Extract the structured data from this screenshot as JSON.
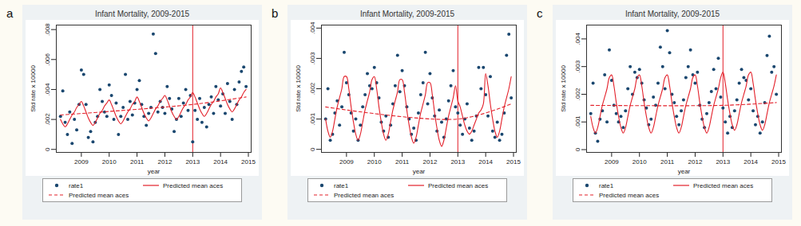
{
  "chart_data": [
    {
      "type": "scatter",
      "panel_label": "a",
      "title": "Infant Mortality, 2009-2015",
      "x_label": "year",
      "y_label": "Std rate x 10000",
      "xlim": [
        2008.1,
        2015.1
      ],
      "xticks": [
        2009,
        2010,
        2011,
        2012,
        2013,
        2014,
        2015
      ],
      "ylim": [
        -0.0002,
        0.0083
      ],
      "yticks": [
        0,
        {
          "value": 0.002,
          "label": ".002"
        },
        {
          "value": 0.004,
          "label": ".004"
        },
        {
          "value": 0.006,
          "label": ".006"
        },
        {
          "value": 0.008,
          "label": ".008"
        }
      ],
      "reference_line": {
        "x": 2013,
        "color": "#e3202a"
      },
      "legend": "bottom",
      "x": [
        2008.25,
        2008.333,
        2008.417,
        2008.5,
        2008.583,
        2008.667,
        2008.75,
        2008.833,
        2008.917,
        2009,
        2009.083,
        2009.167,
        2009.25,
        2009.333,
        2009.417,
        2009.5,
        2009.583,
        2009.667,
        2009.75,
        2009.833,
        2009.917,
        2010,
        2010.083,
        2010.167,
        2010.25,
        2010.333,
        2010.417,
        2010.5,
        2010.583,
        2010.667,
        2010.75,
        2010.833,
        2010.917,
        2011,
        2011.083,
        2011.167,
        2011.25,
        2011.333,
        2011.417,
        2011.5,
        2011.583,
        2011.667,
        2011.75,
        2011.833,
        2011.917,
        2012,
        2012.083,
        2012.167,
        2012.25,
        2012.333,
        2012.417,
        2012.5,
        2012.583,
        2012.667,
        2012.75,
        2012.833,
        2012.917,
        2013,
        2013.083,
        2013.167,
        2013.25,
        2013.333,
        2013.417,
        2013.5,
        2013.583,
        2013.667,
        2013.75,
        2013.833,
        2013.917,
        2014,
        2014.083,
        2014.167,
        2014.25,
        2014.333,
        2014.417,
        2014.5,
        2014.583,
        2014.667,
        2014.75,
        2014.833,
        2014.917
      ],
      "series": [
        {
          "name": "rate1",
          "type": "scatter",
          "marker": "circle",
          "color": "#1a476f",
          "values": [
            0.0022,
            0.0039,
            0.0018,
            0.001,
            0.0025,
            0.0004,
            0.002,
            0.0013,
            0.003,
            0.0053,
            0.005,
            0.003,
            0.0008,
            0.0012,
            0.0005,
            0.0018,
            0.0022,
            0.004,
            0.0032,
            0.0025,
            0.0022,
            0.0043,
            0.0036,
            0.002,
            0.0031,
            0.001,
            0.0022,
            0.0028,
            0.005,
            0.002,
            0.0032,
            0.0023,
            0.0031,
            0.004,
            0.0046,
            0.003,
            0.0022,
            0.0016,
            0.0024,
            0.0028,
            0.0077,
            0.0064,
            0.0025,
            0.0032,
            0.0028,
            0.0024,
            0.0042,
            0.0034,
            0.0027,
            0.0012,
            0.002,
            0.0034,
            0.0022,
            0.0031,
            0.004,
            0.0026,
            0.0036,
            0.0005,
            0.0026,
            0.002,
            0.0034,
            0.0018,
            0.0028,
            0.0015,
            0.003,
            0.0035,
            0.0024,
            0.0042,
            0.0033,
            0.0029,
            0.0037,
            0.0024,
            0.0044,
            0.0032,
            0.002,
            0.004,
            0.003,
            0.0045,
            0.0052,
            0.0055,
            0.0042
          ]
        },
        {
          "name": "Predicted mean aces",
          "type": "line",
          "line_style": "solid",
          "color": "#e3202a",
          "values": [
            0.002,
            0.0017,
            0.0015,
            0.0017,
            0.002,
            0.0023,
            0.0025,
            0.0028,
            0.003,
            0.0032,
            0.0029,
            0.0025,
            0.0021,
            0.0018,
            0.0016,
            0.0018,
            0.0021,
            0.0024,
            0.0026,
            0.0029,
            0.0031,
            0.0033,
            0.003,
            0.0026,
            0.0022,
            0.0019,
            0.0017,
            0.0019,
            0.0022,
            0.0025,
            0.0027,
            0.003,
            0.0032,
            0.0035,
            0.0032,
            0.0028,
            0.0024,
            0.0021,
            0.0019,
            0.0021,
            0.0024,
            0.0027,
            0.0029,
            0.0032,
            0.0034,
            0.0036,
            0.0033,
            0.0029,
            0.0025,
            0.0022,
            0.002,
            0.0022,
            0.0025,
            0.0028,
            0.003,
            0.0033,
            0.0035,
            0.0038,
            0.0035,
            0.0031,
            0.0027,
            0.0024,
            0.0022,
            0.0024,
            0.0027,
            0.003,
            0.0032,
            0.0035,
            0.0037,
            0.0041,
            0.0038,
            0.0034,
            0.003,
            0.0027,
            0.0025,
            0.0027,
            0.003,
            0.0033,
            0.0035,
            0.0038,
            0.004
          ]
        },
        {
          "name": "Predicted mean aces",
          "type": "line",
          "line_style": "dashed",
          "color": "#e3202a",
          "x": [
            2008.25,
            2013,
            2014.917
          ],
          "values": [
            0.0023,
            0.003,
            0.0035
          ]
        }
      ]
    },
    {
      "type": "scatter",
      "panel_label": "b",
      "title": "Infant Mortality, 2009-2015",
      "x_label": "year",
      "y_label": "Std rate x 10000",
      "xlim": [
        2008.1,
        2015.1
      ],
      "xticks": [
        2009,
        2010,
        2011,
        2012,
        2013,
        2014,
        2015
      ],
      "ylim": [
        -0.0001,
        0.0041
      ],
      "yticks": [
        0,
        {
          "value": 0.001,
          "label": ".001"
        },
        {
          "value": 0.002,
          "label": ".002"
        },
        {
          "value": 0.003,
          "label": ".003"
        },
        {
          "value": 0.004,
          "label": ".004"
        }
      ],
      "reference_line": {
        "x": 2013,
        "color": "#e3202a"
      },
      "legend": "bottom",
      "x": [
        2008.25,
        2008.333,
        2008.417,
        2008.5,
        2008.583,
        2008.667,
        2008.75,
        2008.833,
        2008.917,
        2009,
        2009.083,
        2009.167,
        2009.25,
        2009.333,
        2009.417,
        2009.5,
        2009.583,
        2009.667,
        2009.75,
        2009.833,
        2009.917,
        2010,
        2010.083,
        2010.167,
        2010.25,
        2010.333,
        2010.417,
        2010.5,
        2010.583,
        2010.667,
        2010.75,
        2010.833,
        2010.917,
        2011,
        2011.083,
        2011.167,
        2011.25,
        2011.333,
        2011.417,
        2011.5,
        2011.583,
        2011.667,
        2011.75,
        2011.833,
        2011.917,
        2012,
        2012.083,
        2012.167,
        2012.25,
        2012.333,
        2012.417,
        2012.5,
        2012.583,
        2012.667,
        2012.75,
        2012.833,
        2012.917,
        2013,
        2013.083,
        2013.167,
        2013.25,
        2013.333,
        2013.417,
        2013.5,
        2013.583,
        2013.667,
        2013.75,
        2013.833,
        2013.917,
        2014,
        2014.083,
        2014.167,
        2014.25,
        2014.333,
        2014.417,
        2014.5,
        2014.583,
        2014.667,
        2014.75,
        2014.833,
        2014.917
      ],
      "series": [
        {
          "name": "rate1",
          "type": "scatter",
          "marker": "circle",
          "color": "#1a476f",
          "values": [
            0.001,
            0.002,
            0.0003,
            0.0005,
            0.0012,
            0.0016,
            0.0008,
            0.0014,
            0.0032,
            0.0022,
            0.0018,
            0.0012,
            0.0006,
            0.001,
            0.0003,
            0.0008,
            0.0014,
            0.0018,
            0.0025,
            0.0021,
            0.002,
            0.0027,
            0.0022,
            0.0017,
            0.0009,
            0.0006,
            0.0011,
            0.0004,
            0.0008,
            0.0015,
            0.0021,
            0.0031,
            0.0019,
            0.0026,
            0.0021,
            0.0014,
            0.001,
            0.0005,
            0.0007,
            0.0003,
            0.0012,
            0.0018,
            0.0022,
            0.0032,
            0.0015,
            0.0025,
            0.0017,
            0.0011,
            0.0006,
            0.0013,
            0.0009,
            0.0004,
            0.001,
            0.0016,
            0.0021,
            0.0026,
            0.0014,
            0.0012,
            0.0008,
            0.0005,
            0.001,
            0.0015,
            0.0007,
            0.0003,
            0.0006,
            0.0011,
            0.0027,
            0.002,
            0.0027,
            0.0018,
            0.0011,
            0.0024,
            0.0006,
            0.0004,
            0.0009,
            0.0003,
            0.0005,
            0.0012,
            0.0031,
            0.0038,
            0.0017
          ]
        },
        {
          "name": "Predicted mean aces",
          "type": "line",
          "line_style": "solid",
          "color": "#e3202a",
          "values": [
            0.001,
            0.0006,
            0.0004,
            0.0006,
            0.001,
            0.0014,
            0.0017,
            0.002,
            0.0024,
            0.0024,
            0.002,
            0.0014,
            0.0009,
            0.0005,
            0.0003,
            0.0005,
            0.0009,
            0.0013,
            0.0016,
            0.0019,
            0.0023,
            0.0024,
            0.002,
            0.0014,
            0.0009,
            0.0005,
            0.0003,
            0.0005,
            0.0009,
            0.0013,
            0.0016,
            0.0019,
            0.0023,
            0.0023,
            0.0019,
            0.0013,
            0.0008,
            0.0004,
            0.0002,
            0.0004,
            0.0008,
            0.0012,
            0.0015,
            0.0018,
            0.0022,
            0.0022,
            0.0018,
            0.0012,
            0.0007,
            0.0003,
            0.0001,
            0.0003,
            0.0007,
            0.0011,
            0.0014,
            0.0017,
            0.0021,
            0.0016,
            0.0014,
            0.0011,
            0.0008,
            0.0006,
            0.0005,
            0.0006,
            0.0008,
            0.001,
            0.0012,
            0.0013,
            0.0015,
            0.0025,
            0.0021,
            0.0015,
            0.001,
            0.0006,
            0.0004,
            0.0006,
            0.001,
            0.0014,
            0.0017,
            0.002,
            0.0024
          ]
        },
        {
          "name": "Predicted mean aces",
          "type": "line",
          "line_style": "dashed",
          "color": "#e3202a",
          "x": [
            2008.25,
            2013,
            2014.917
          ],
          "values": [
            0.0014,
            0.001,
            0.0015
          ]
        }
      ]
    },
    {
      "type": "scatter",
      "panel_label": "c",
      "title": "Infant Mortality, 2009-2015",
      "x_label": "year",
      "y_label": "Std rate x 10000",
      "xlim": [
        2008.1,
        2015.1
      ],
      "xticks": [
        2009,
        2010,
        2011,
        2012,
        2013,
        2014,
        2015
      ],
      "ylim": [
        -0.0001,
        0.0045
      ],
      "yticks": [
        0,
        {
          "value": 0.001,
          "label": ".001"
        },
        {
          "value": 0.002,
          "label": ".002"
        },
        {
          "value": 0.003,
          "label": ".003"
        },
        {
          "value": 0.004,
          "label": ".004"
        }
      ],
      "reference_line": {
        "x": 2013,
        "color": "#e3202a"
      },
      "legend": "bottom",
      "x": [
        2008.25,
        2008.333,
        2008.417,
        2008.5,
        2008.583,
        2008.667,
        2008.75,
        2008.833,
        2008.917,
        2009,
        2009.083,
        2009.167,
        2009.25,
        2009.333,
        2009.417,
        2009.5,
        2009.583,
        2009.667,
        2009.75,
        2009.833,
        2009.917,
        2010,
        2010.083,
        2010.167,
        2010.25,
        2010.333,
        2010.417,
        2010.5,
        2010.583,
        2010.667,
        2010.75,
        2010.833,
        2010.917,
        2011,
        2011.083,
        2011.167,
        2011.25,
        2011.333,
        2011.417,
        2011.5,
        2011.583,
        2011.667,
        2011.75,
        2011.833,
        2011.917,
        2012,
        2012.083,
        2012.167,
        2012.25,
        2012.333,
        2012.417,
        2012.5,
        2012.583,
        2012.667,
        2012.75,
        2012.833,
        2012.917,
        2013,
        2013.083,
        2013.167,
        2013.25,
        2013.333,
        2013.417,
        2013.5,
        2013.583,
        2013.667,
        2013.75,
        2013.833,
        2013.917,
        2014,
        2014.083,
        2014.167,
        2014.25,
        2014.333,
        2014.417,
        2014.5,
        2014.583,
        2014.667,
        2014.75,
        2014.833,
        2014.917
      ],
      "series": [
        {
          "name": "rate1",
          "type": "scatter",
          "marker": "circle",
          "color": "#1a476f",
          "values": [
            0.0013,
            0.0024,
            0.0006,
            0.0003,
            0.0011,
            0.0014,
            0.0027,
            0.001,
            0.0036,
            0.0025,
            0.0016,
            0.0013,
            0.001,
            0.0012,
            0.0008,
            0.0014,
            0.0022,
            0.003,
            0.002,
            0.0028,
            0.0026,
            0.0029,
            0.0024,
            0.0018,
            0.0015,
            0.0009,
            0.0011,
            0.0019,
            0.0016,
            0.0024,
            0.0037,
            0.003,
            0.0022,
            0.0043,
            0.0035,
            0.002,
            0.0017,
            0.0012,
            0.0009,
            0.0014,
            0.0018,
            0.0026,
            0.003,
            0.0036,
            0.0027,
            0.0024,
            0.0028,
            0.0016,
            0.0011,
            0.0008,
            0.0013,
            0.0017,
            0.0021,
            0.0029,
            0.0022,
            0.0033,
            0.0019,
            0.0015,
            0.001,
            0.0006,
            0.0012,
            0.0008,
            0.0014,
            0.0018,
            0.0024,
            0.0029,
            0.0026,
            0.0025,
            0.0018,
            0.0022,
            0.0014,
            0.0009,
            0.0012,
            0.0006,
            0.001,
            0.0017,
            0.0034,
            0.0041,
            0.0028,
            0.003,
            0.002
          ]
        },
        {
          "name": "Predicted mean aces",
          "type": "line",
          "line_style": "solid",
          "color": "#e3202a",
          "values": [
            0.0012,
            0.0008,
            0.0006,
            0.0008,
            0.0012,
            0.0016,
            0.0019,
            0.0022,
            0.0026,
            0.0027,
            0.0023,
            0.0017,
            0.0012,
            0.0008,
            0.0006,
            0.0008,
            0.0012,
            0.0016,
            0.0019,
            0.0022,
            0.0026,
            0.0027,
            0.0023,
            0.0017,
            0.0012,
            0.0008,
            0.0006,
            0.0008,
            0.0012,
            0.0016,
            0.0019,
            0.0022,
            0.0026,
            0.0027,
            0.0023,
            0.0017,
            0.0012,
            0.0008,
            0.0006,
            0.0008,
            0.0012,
            0.0016,
            0.0019,
            0.0022,
            0.0026,
            0.0027,
            0.0023,
            0.0017,
            0.0012,
            0.0008,
            0.0006,
            0.0008,
            0.0012,
            0.0016,
            0.0019,
            0.0022,
            0.0026,
            0.0028,
            0.0024,
            0.0018,
            0.0013,
            0.0009,
            0.0007,
            0.0009,
            0.0013,
            0.0017,
            0.002,
            0.0023,
            0.0027,
            0.0028,
            0.0024,
            0.0018,
            0.0013,
            0.0009,
            0.0007,
            0.0009,
            0.0013,
            0.0017,
            0.002,
            0.0023,
            0.0027
          ]
        },
        {
          "name": "Predicted mean aces",
          "type": "line",
          "line_style": "dashed",
          "color": "#e3202a",
          "x": [
            2008.25,
            2013,
            2014.917
          ],
          "values": [
            0.0016,
            0.0016,
            0.0017
          ]
        }
      ]
    }
  ]
}
